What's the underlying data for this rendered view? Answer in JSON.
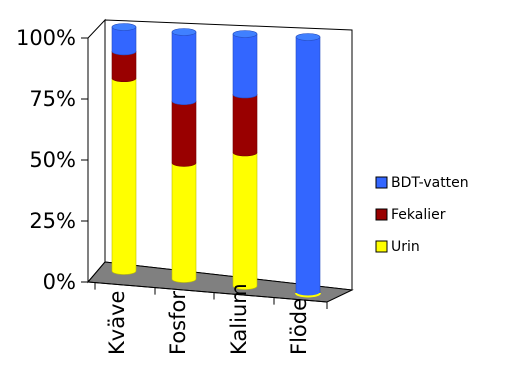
{
  "chart_data": {
    "type": "bar",
    "stacked": true,
    "percent_stacked": true,
    "categories": [
      "Kväve",
      "Fosfor",
      "Kalium",
      "Flöde"
    ],
    "series": [
      {
        "name": "Urin",
        "color": "#FFFF00",
        "values": [
          79,
          47,
          53,
          0
        ]
      },
      {
        "name": "Fekalier",
        "color": "#990000",
        "values": [
          11,
          25,
          23,
          0
        ]
      },
      {
        "name": "BDT-vatten",
        "color": "#3366FF",
        "values": [
          10,
          28,
          24,
          100
        ]
      }
    ],
    "y_ticks": [
      "0%",
      "25%",
      "50%",
      "75%",
      "100%"
    ],
    "ylim": [
      0,
      100
    ],
    "title": "",
    "xlabel": "",
    "ylabel": "",
    "legend": {
      "placement": "right",
      "order": [
        "BDT-vatten",
        "Fekalier",
        "Urin"
      ]
    },
    "floor_color": "#808080"
  }
}
